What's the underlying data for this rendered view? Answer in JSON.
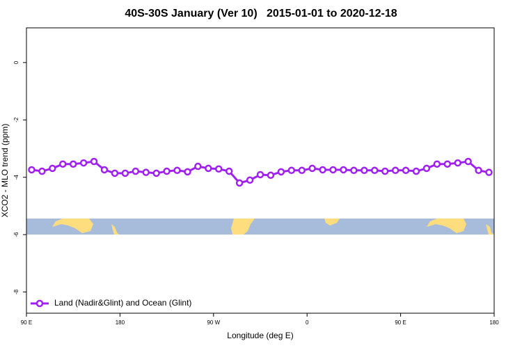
{
  "chart_data": {
    "type": "line",
    "title": "40S-30S January (Ver 10)   2015-01-01 to 2020-12-18",
    "x_label": "Longitude (deg E)",
    "y_label": "XCO2 - MLO trend (ppm)",
    "x": [
      95,
      105,
      115,
      125,
      135,
      145,
      155,
      165,
      175,
      185,
      195,
      205,
      215,
      225,
      235,
      245,
      255,
      265,
      275,
      285,
      295,
      305,
      315,
      325,
      335,
      345,
      355,
      365,
      375,
      385,
      395,
      405,
      415,
      425,
      435,
      445,
      455,
      465,
      475,
      485,
      495,
      505,
      515,
      525,
      535
    ],
    "series": [
      {
        "name": "Land (Nadir&Glint) and Ocean (Glint)",
        "color": "#a020f0",
        "values": [
          -3.74,
          -3.79,
          -3.69,
          -3.54,
          -3.54,
          -3.5,
          -3.45,
          -3.74,
          -3.86,
          -3.86,
          -3.79,
          -3.83,
          -3.86,
          -3.79,
          -3.76,
          -3.81,
          -3.62,
          -3.69,
          -3.71,
          -3.79,
          -4.2,
          -4.1,
          -3.91,
          -3.93,
          -3.81,
          -3.76,
          -3.76,
          -3.69,
          -3.74,
          -3.74,
          -3.74,
          -3.76,
          -3.76,
          -3.76,
          -3.79,
          -3.76,
          -3.76,
          -3.79,
          -3.69,
          -3.54,
          -3.54,
          -3.5,
          -3.45,
          -3.76,
          -3.83
        ]
      }
    ],
    "xlim": [
      90,
      540
    ],
    "xticks": [
      {
        "value": 90,
        "label": "90 E"
      },
      180,
      {
        "value": 270,
        "label": "90 W"
      },
      {
        "value": 360,
        "label": "0"
      },
      {
        "value": 450,
        "label": "90 E"
      },
      {
        "value": 540,
        "label": "180"
      }
    ],
    "ylim": [
      -8.74,
      1.21
    ],
    "yticks": [
      0,
      -2,
      -4,
      -6,
      -8
    ],
    "grid": false,
    "legend": "bottom-left"
  }
}
